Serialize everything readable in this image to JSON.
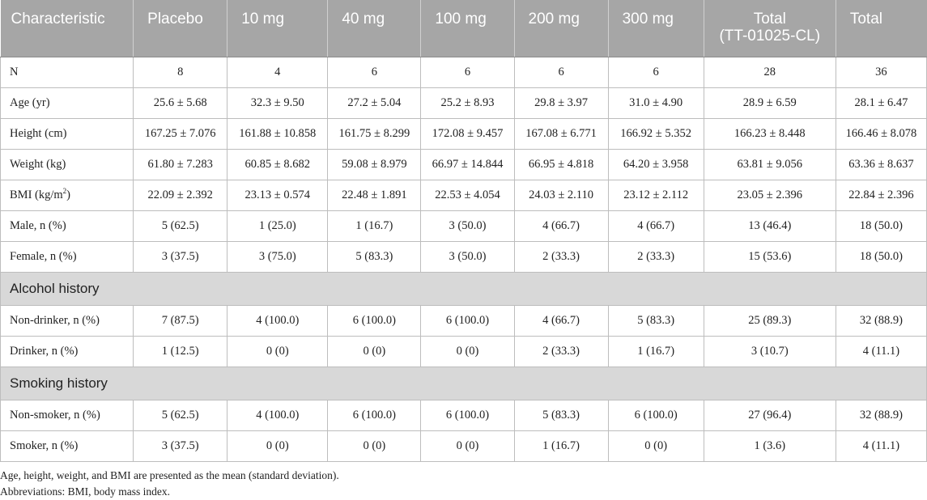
{
  "table": {
    "headers": [
      "Characteristic",
      "Placebo",
      "10 mg",
      "40 mg",
      "100 mg",
      "200 mg",
      "300 mg",
      "Total\n(TT-01025-CL)",
      "Total"
    ],
    "header_total_line1": "Total",
    "header_total_line2": "(TT-01025-CL)",
    "rows": [
      {
        "label": "N",
        "values": [
          "8",
          "4",
          "6",
          "6",
          "6",
          "6",
          "28",
          "36"
        ]
      },
      {
        "label": "Age (yr)",
        "values": [
          "25.6 ± 5.68",
          "32.3 ± 9.50",
          "27.2 ± 5.04",
          "25.2 ± 8.93",
          "29.8 ± 3.97",
          "31.0 ± 4.90",
          "28.9 ± 6.59",
          "28.1 ± 6.47"
        ]
      },
      {
        "label": "Height (cm)",
        "values": [
          "167.25 ± 7.076",
          "161.88 ± 10.858",
          "161.75 ± 8.299",
          "172.08 ± 9.457",
          "167.08 ± 6.771",
          "166.92 ± 5.352",
          "166.23 ± 8.448",
          "166.46 ± 8.078"
        ]
      },
      {
        "label": "Weight (kg)",
        "values": [
          "61.80 ± 7.283",
          "60.85 ± 8.682",
          "59.08 ± 8.979",
          "66.97 ± 14.844",
          "66.95 ± 4.818",
          "64.20 ± 3.958",
          "63.81 ± 9.056",
          "63.36 ± 8.637"
        ]
      },
      {
        "label": "BMI (kg/m",
        "label_sup": "2",
        "label_end": ")",
        "values": [
          "22.09 ± 2.392",
          "23.13 ± 0.574",
          "22.48 ± 1.891",
          "22.53 ± 4.054",
          "24.03 ± 2.110",
          "23.12 ± 2.112",
          "23.05 ± 2.396",
          "22.84 ± 2.396"
        ]
      },
      {
        "label": "Male, n (%)",
        "values": [
          "5 (62.5)",
          "1 (25.0)",
          "1 (16.7)",
          "3 (50.0)",
          "4 (66.7)",
          "4 (66.7)",
          "13 (46.4)",
          "18 (50.0)"
        ]
      },
      {
        "label": "Female, n (%)",
        "values": [
          "3 (37.5)",
          "3 (75.0)",
          "5 (83.3)",
          "3 (50.0)",
          "2 (33.3)",
          "2 (33.3)",
          "15 (53.6)",
          "18 (50.0)"
        ]
      }
    ],
    "section_alcohol": "Alcohol history",
    "alcohol_rows": [
      {
        "label": "Non-drinker, n (%)",
        "values": [
          "7 (87.5)",
          "4 (100.0)",
          "6 (100.0)",
          "6 (100.0)",
          "4 (66.7)",
          "5 (83.3)",
          "25 (89.3)",
          "32 (88.9)"
        ]
      },
      {
        "label": "Drinker, n (%)",
        "values": [
          "1 (12.5)",
          "0 (0)",
          "0 (0)",
          "0 (0)",
          "2 (33.3)",
          "1 (16.7)",
          "3 (10.7)",
          "4 (11.1)"
        ]
      }
    ],
    "section_smoking": "Smoking history",
    "smoking_rows": [
      {
        "label": "Non-smoker, n (%)",
        "values": [
          "5 (62.5)",
          "4 (100.0)",
          "6 (100.0)",
          "6 (100.0)",
          "5 (83.3)",
          "6 (100.0)",
          "27 (96.4)",
          "32 (88.9)"
        ]
      },
      {
        "label": "Smoker, n (%)",
        "values": [
          "3 (37.5)",
          "0 (0)",
          "0 (0)",
          "0 (0)",
          "1 (16.7)",
          "0 (0)",
          "1 (3.6)",
          "4 (11.1)"
        ]
      }
    ]
  },
  "notes": {
    "line1": "Age, height, weight, and BMI are presented as the mean (standard deviation).",
    "line2": "Abbreviations: BMI, body mass index."
  },
  "colors": {
    "header_bg": "#a6a6a6",
    "section_bg": "#d8d8d8",
    "border": "#bdbdbd"
  }
}
